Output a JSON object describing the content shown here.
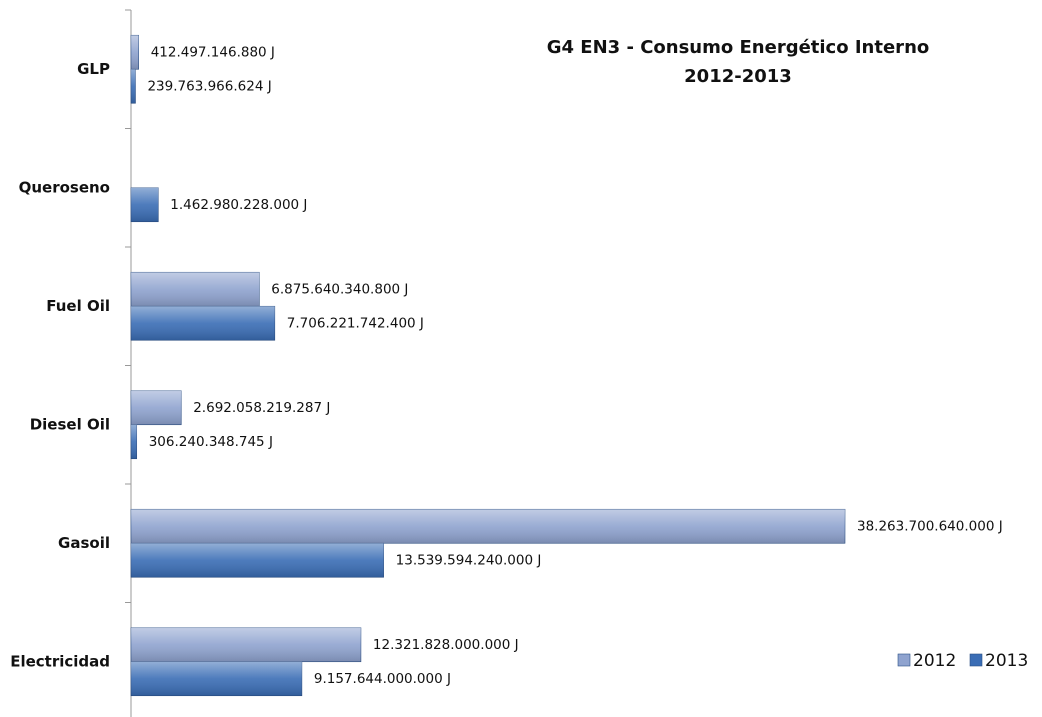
{
  "chart_data": {
    "type": "bar",
    "orientation": "horizontal",
    "title": [
      "G4 EN3 - Consumo Energético Interno",
      "2012-2013"
    ],
    "categories": [
      "GLP",
      "Queroseno",
      "Fuel Oil",
      "Diesel Oil",
      "Gasoil",
      "Electricidad"
    ],
    "series": [
      {
        "name": "2012",
        "color": "#8fa3cf",
        "values": [
          412497146880,
          null,
          6875640340800,
          2692058219287,
          38263700640000,
          12321828000000
        ],
        "value_labels": [
          "412.497.146.880 J",
          null,
          "6.875.640.340.800 J",
          "2.692.058.219.287 J",
          "38.263.700.640.000 J",
          "12.321.828.000.000 J"
        ]
      },
      {
        "name": "2013",
        "color": "#3a6db5",
        "values": [
          239763966624,
          1462980228000,
          7706221742400,
          306240348745,
          13539594240000,
          9157644000000
        ],
        "value_labels": [
          "239.763.966.624 J",
          "1.462.980.228.000 J",
          "7.706.221.742.400 J",
          "306.240.348.745 J",
          "13.539.594.240.000 J",
          "9.157.644.000.000 J"
        ]
      }
    ],
    "legend": "bottom-right"
  }
}
